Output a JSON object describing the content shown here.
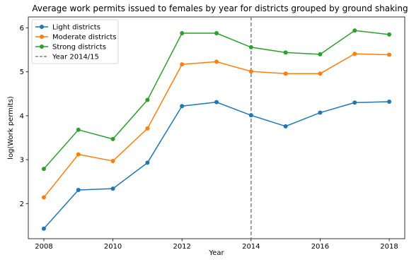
{
  "chart_data": {
    "type": "line",
    "title": "Average work permits issued to females by year for districts grouped by ground shaking",
    "xlabel": "Year",
    "ylabel": "log(Work permits)",
    "xlim": [
      2007.55,
      2018.45
    ],
    "ylim": [
      1.2,
      6.25
    ],
    "xticks": [
      2008,
      2010,
      2012,
      2014,
      2016,
      2018
    ],
    "yticks": [
      2,
      3,
      4,
      5,
      6
    ],
    "grid": false,
    "legend_position": "top-left",
    "x": [
      2008,
      2009,
      2010,
      2011,
      2012,
      2013,
      2014,
      2015,
      2016,
      2017,
      2018
    ],
    "series": [
      {
        "name": "Light districts",
        "color": "#1f77b4",
        "values": [
          1.43,
          2.31,
          2.34,
          2.93,
          4.22,
          4.31,
          4.01,
          3.76,
          4.07,
          4.3,
          4.32
        ]
      },
      {
        "name": "Moderate districts",
        "color": "#ff7f0e",
        "values": [
          2.14,
          3.12,
          2.97,
          3.71,
          5.17,
          5.23,
          5.01,
          4.96,
          4.96,
          5.41,
          5.39
        ]
      },
      {
        "name": "Strong districts",
        "color": "#2ca02c",
        "values": [
          2.79,
          3.68,
          3.47,
          4.36,
          5.88,
          5.88,
          5.56,
          5.44,
          5.4,
          5.94,
          5.85
        ]
      }
    ],
    "reference_line": {
      "name": "Year 2014/15",
      "x": 2014,
      "color": "#808080",
      "style": "dashed"
    }
  }
}
